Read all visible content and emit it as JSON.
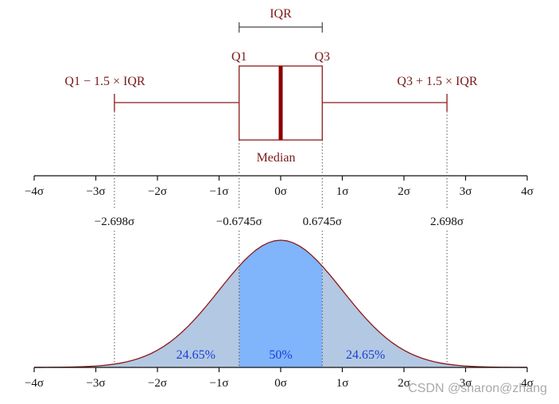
{
  "box_plot": {
    "iqr_label": "IQR",
    "q1_label": "Q1",
    "q3_label": "Q3",
    "lower_fence_label": "Q1 − 1.5 × IQR",
    "upper_fence_label": "Q3 + 1.5 × IQR",
    "median_label": "Median",
    "q1_value": -0.6745,
    "q3_value": 0.6745,
    "median_value": 0,
    "lower_whisker": -2.698,
    "upper_whisker": 2.698
  },
  "axis": {
    "range": [
      -4,
      4
    ],
    "ticks": [
      {
        "value": -4,
        "label": "−4σ"
      },
      {
        "value": -3,
        "label": "−3σ"
      },
      {
        "value": -2,
        "label": "−2σ"
      },
      {
        "value": -1,
        "label": "−1σ"
      },
      {
        "value": 0,
        "label": "0σ"
      },
      {
        "value": 1,
        "label": "1σ"
      },
      {
        "value": 2,
        "label": "2σ"
      },
      {
        "value": 3,
        "label": "3σ"
      },
      {
        "value": 4,
        "label": "4σ"
      }
    ]
  },
  "markers": [
    {
      "value": -2.698,
      "label": "−2.698σ"
    },
    {
      "value": -0.6745,
      "label": "−0.6745σ"
    },
    {
      "value": 0.6745,
      "label": "0.6745σ"
    },
    {
      "value": 2.698,
      "label": "2.698σ"
    }
  ],
  "regions": [
    {
      "from": -2.698,
      "to": -0.6745,
      "label": "24.65%",
      "color": "#b3c8e3"
    },
    {
      "from": -0.6745,
      "to": 0.6745,
      "label": "50%",
      "color": "#80b4fb"
    },
    {
      "from": 0.6745,
      "to": 2.698,
      "label": "24.65%",
      "color": "#b3c8e3"
    }
  ],
  "colors": {
    "box": "#8b1a1a",
    "median": "#8b0000",
    "curve": "#8b1a1a",
    "tail_fill": "#b3c8e3",
    "percent_text": "#1a3fd6"
  },
  "watermark": "CSDN @sharon@zhang"
}
